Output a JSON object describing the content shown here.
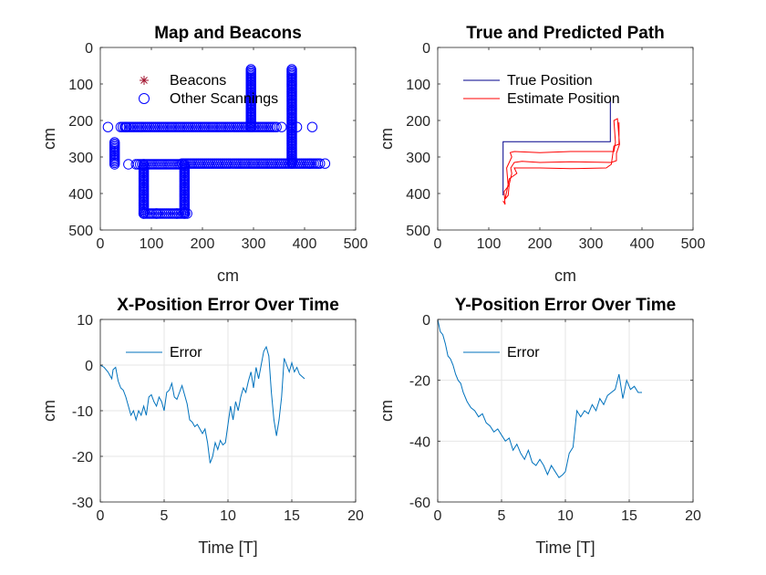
{
  "colors": {
    "blue": "#0000ff",
    "red": "#ff0000",
    "darkred": "#a2142f",
    "navy": "#00008b",
    "matlab_blue": "#0072bd"
  },
  "chart_data": [
    {
      "type": "scatter",
      "title": "Map and Beacons",
      "xlabel": "cm",
      "ylabel": "cm",
      "xlim": [
        0,
        500
      ],
      "ylim": [
        0,
        500
      ],
      "y_reversed": true,
      "grid": false,
      "xticks": [
        "0",
        "100",
        "200",
        "300",
        "400",
        "500"
      ],
      "yticks": [
        "0",
        "100",
        "200",
        "300",
        "400",
        "500"
      ],
      "legend": {
        "placement": "top-left",
        "entries": [
          "Beacons",
          "Other Scannings"
        ]
      },
      "series": [
        {
          "name": "Beacons",
          "marker": "asterisk",
          "color": "#a2142f",
          "points": []
        },
        {
          "name": "Other Scannings",
          "marker": "circle",
          "color": "#0000ff",
          "segments": [
            {
              "from": [
                40,
                218
              ],
              "to": [
                345,
                218
              ]
            },
            {
              "from": [
                28,
                260
              ],
              "to": [
                28,
                320
              ]
            },
            {
              "from": [
                70,
                320
              ],
              "to": [
                160,
                320
              ]
            },
            {
              "from": [
                160,
                318
              ],
              "to": [
                430,
                318
              ]
            },
            {
              "from": [
                85,
                320
              ],
              "to": [
                85,
                455
              ]
            },
            {
              "from": [
                165,
                320
              ],
              "to": [
                165,
                455
              ]
            },
            {
              "from": [
                85,
                455
              ],
              "to": [
                170,
                455
              ]
            },
            {
              "from": [
                295,
                60
              ],
              "to": [
                295,
                218
              ]
            },
            {
              "from": [
                375,
                60
              ],
              "to": [
                375,
                318
              ]
            }
          ],
          "extra_points": [
            [
              15,
              218
            ],
            [
              50,
              218
            ],
            [
              80,
              218
            ],
            [
              355,
              218
            ],
            [
              385,
              218
            ],
            [
              415,
              218
            ],
            [
              440,
              318
            ],
            [
              410,
              318
            ],
            [
              55,
              320
            ],
            [
              110,
              455
            ],
            [
              150,
              455
            ]
          ]
        }
      ]
    },
    {
      "type": "line",
      "title": "True and Predicted Path",
      "xlabel": "cm",
      "ylabel": "cm",
      "xlim": [
        0,
        500
      ],
      "ylim": [
        0,
        500
      ],
      "y_reversed": true,
      "grid": false,
      "xticks": [
        "0",
        "100",
        "200",
        "300",
        "400",
        "500"
      ],
      "yticks": [
        "0",
        "100",
        "200",
        "300",
        "400",
        "500"
      ],
      "legend": {
        "placement": "top-left",
        "entries": [
          "True Position",
          "Estimate Position"
        ]
      },
      "series": [
        {
          "name": "True Position",
          "color": "#00008b",
          "points": [
            [
              128,
              405
            ],
            [
              128,
              258
            ],
            [
              338,
              258
            ],
            [
              338,
              145
            ],
            [
              338,
              258
            ]
          ]
        },
        {
          "name": "Estimate Position",
          "color": "#ff0000",
          "points": [
            [
              128,
              420
            ],
            [
              132,
              430
            ],
            [
              130,
              395
            ],
            [
              138,
              380
            ],
            [
              135,
              330
            ],
            [
              145,
              300
            ],
            [
              142,
              288
            ],
            [
              150,
              285
            ],
            [
              200,
              288
            ],
            [
              260,
              285
            ],
            [
              320,
              285
            ],
            [
              345,
              285
            ],
            [
              348,
              260
            ],
            [
              345,
              200
            ],
            [
              352,
              195
            ],
            [
              356,
              265
            ],
            [
              350,
              290
            ],
            [
              350,
              310
            ],
            [
              340,
              315
            ],
            [
              260,
              313
            ],
            [
              200,
              315
            ],
            [
              165,
              312
            ],
            [
              150,
              315
            ],
            [
              143,
              330
            ],
            [
              145,
              345
            ],
            [
              140,
              375
            ],
            [
              138,
              405
            ],
            [
              132,
              415
            ],
            [
              135,
              395
            ],
            [
              140,
              360
            ],
            [
              155,
              345
            ],
            [
              150,
              330
            ],
            [
              200,
              330
            ],
            [
              260,
              332
            ],
            [
              330,
              330
            ],
            [
              340,
              320
            ],
            [
              345,
              270
            ],
            [
              355,
              265
            ],
            [
              355,
              205
            ]
          ]
        }
      ]
    },
    {
      "type": "line",
      "title": "X-Position Error Over Time",
      "xlabel": "Time [T]",
      "ylabel": "cm",
      "xlim": [
        0,
        20
      ],
      "ylim": [
        -30,
        10
      ],
      "grid": true,
      "xticks": [
        "0",
        "5",
        "10",
        "15",
        "20"
      ],
      "yticks": [
        "10",
        "0",
        "-10",
        "-20",
        "-30"
      ],
      "legend": {
        "placement": "top-left",
        "entries": [
          "Error"
        ]
      },
      "series": [
        {
          "name": "Error",
          "color": "#0072bd",
          "x": [
            0,
            0.3,
            0.6,
            0.9,
            1.0,
            1.2,
            1.4,
            1.6,
            1.8,
            2.0,
            2.2,
            2.4,
            2.6,
            2.8,
            3.0,
            3.2,
            3.4,
            3.6,
            3.8,
            4.0,
            4.2,
            4.4,
            4.6,
            4.8,
            5.0,
            5.2,
            5.4,
            5.6,
            5.8,
            6.0,
            6.2,
            6.4,
            6.6,
            6.8,
            7.0,
            7.2,
            7.4,
            7.6,
            7.8,
            8.0,
            8.2,
            8.4,
            8.6,
            8.8,
            9.0,
            9.2,
            9.4,
            9.6,
            9.8,
            10.0,
            10.2,
            10.4,
            10.6,
            10.8,
            11.0,
            11.2,
            11.4,
            11.6,
            11.8,
            12.0,
            12.2,
            12.4,
            12.6,
            12.8,
            13.0,
            13.2,
            13.4,
            13.6,
            13.8,
            14.0,
            14.2,
            14.4,
            14.6,
            14.8,
            15.0,
            15.2,
            15.4,
            15.6,
            15.8,
            16.0
          ],
          "values": [
            0,
            -0.5,
            -1.5,
            -3,
            -1,
            -0.5,
            -3.5,
            -5,
            -5.5,
            -7,
            -9,
            -11,
            -10,
            -12,
            -10,
            -11,
            -9,
            -11,
            -7,
            -6.5,
            -8,
            -9,
            -7,
            -8,
            -10,
            -6,
            -5.5,
            -4,
            -7,
            -7.5,
            -6,
            -4.5,
            -6.5,
            -8.5,
            -12,
            -12.5,
            -13.5,
            -13,
            -14,
            -15,
            -14,
            -17,
            -21.5,
            -20,
            -17,
            -18.5,
            -16.5,
            -17.5,
            -17,
            -13,
            -9,
            -12,
            -8,
            -10,
            -7,
            -5,
            -6,
            -3.5,
            -1.5,
            -5,
            -0.5,
            -3,
            0,
            3,
            4,
            2,
            -6,
            -12,
            -15.5,
            -12,
            -7,
            1.5,
            0,
            -1.5,
            0.5,
            -1.5,
            -0.5,
            -2,
            -2.5,
            -3
          ]
        }
      ]
    },
    {
      "type": "line",
      "title": "Y-Position Error Over Time",
      "xlabel": "Time [T]",
      "ylabel": "cm",
      "xlim": [
        0,
        20
      ],
      "ylim": [
        -60,
        0
      ],
      "grid": true,
      "xticks": [
        "0",
        "5",
        "10",
        "15",
        "20"
      ],
      "yticks": [
        "0",
        "-20",
        "-40",
        "-60"
      ],
      "legend": {
        "placement": "top-left",
        "entries": [
          "Error"
        ]
      },
      "series": [
        {
          "name": "Error",
          "color": "#0072bd",
          "x": [
            0,
            0.2,
            0.4,
            0.6,
            0.8,
            1.0,
            1.2,
            1.4,
            1.6,
            1.8,
            2.0,
            2.3,
            2.6,
            2.9,
            3.2,
            3.5,
            3.8,
            4.1,
            4.4,
            4.7,
            5.0,
            5.3,
            5.6,
            5.9,
            6.2,
            6.5,
            6.8,
            7.1,
            7.4,
            7.7,
            8.0,
            8.3,
            8.6,
            8.9,
            9.2,
            9.5,
            9.8,
            10.0,
            10.3,
            10.6,
            10.9,
            11.2,
            11.5,
            11.8,
            12.1,
            12.4,
            12.7,
            13.0,
            13.3,
            13.6,
            13.9,
            14.2,
            14.5,
            14.8,
            15.1,
            15.4,
            15.7,
            16.0
          ],
          "values": [
            0,
            -4,
            -5,
            -8,
            -12,
            -13,
            -15,
            -18,
            -20,
            -21,
            -24,
            -27,
            -29,
            -30,
            -32,
            -31,
            -34,
            -35,
            -37,
            -36,
            -38,
            -40,
            -39,
            -43,
            -41,
            -44,
            -46,
            -43,
            -47,
            -48,
            -46,
            -48,
            -51,
            -48,
            -50,
            -52,
            -51,
            -50,
            -44,
            -42,
            -30,
            -32,
            -30,
            -31,
            -28,
            -30,
            -26,
            -28,
            -25,
            -24,
            -23,
            -18,
            -26,
            -20,
            -23,
            -22,
            -24,
            -24
          ]
        }
      ]
    }
  ]
}
